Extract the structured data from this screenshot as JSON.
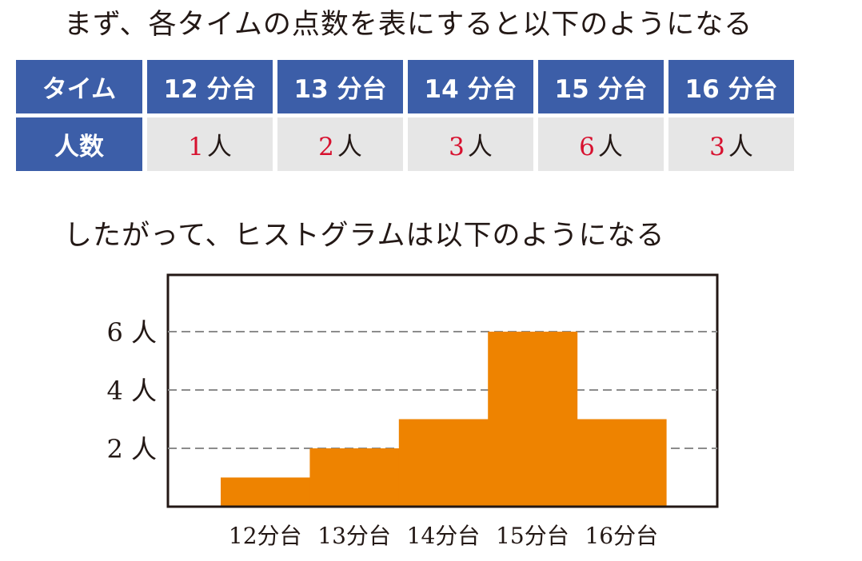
{
  "intro_table": "まず、各タイムの点数を表にすると以下のようになる",
  "intro_chart": "したがって、ヒストグラムは以下のようになる",
  "table": {
    "row_header": "タイム",
    "count_header": "人数",
    "columns": [
      "12 分台",
      "13 分台",
      "14 分台",
      "15 分台",
      "16 分台"
    ],
    "counts": [
      "1",
      "2",
      "3",
      "6",
      "3"
    ],
    "unit": "人"
  },
  "chart_data": {
    "type": "bar",
    "categories": [
      "12分台",
      "13分台",
      "14分台",
      "15分台",
      "16分台"
    ],
    "values": [
      1,
      2,
      3,
      6,
      3
    ],
    "ylim": [
      0,
      6
    ],
    "yticks": [
      2,
      4,
      6
    ],
    "ytick_labels": [
      "2 人",
      "4 人",
      "6 人"
    ],
    "grid": "horizontal dashed",
    "bar_color": "#ee8300",
    "histogram": true
  }
}
